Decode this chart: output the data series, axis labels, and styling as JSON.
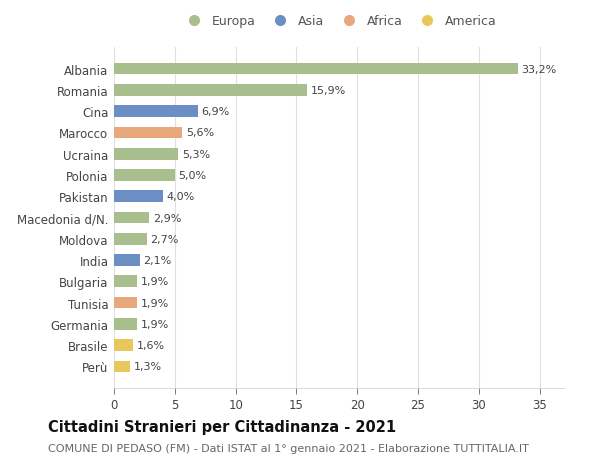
{
  "categories": [
    "Albania",
    "Romania",
    "Cina",
    "Marocco",
    "Ucraina",
    "Polonia",
    "Pakistan",
    "Macedonia d/N.",
    "Moldova",
    "India",
    "Bulgaria",
    "Tunisia",
    "Germania",
    "Brasile",
    "Perù"
  ],
  "values": [
    33.2,
    15.9,
    6.9,
    5.6,
    5.3,
    5.0,
    4.0,
    2.9,
    2.7,
    2.1,
    1.9,
    1.9,
    1.9,
    1.6,
    1.3
  ],
  "labels": [
    "33,2%",
    "15,9%",
    "6,9%",
    "5,6%",
    "5,3%",
    "5,0%",
    "4,0%",
    "2,9%",
    "2,7%",
    "2,1%",
    "1,9%",
    "1,9%",
    "1,9%",
    "1,6%",
    "1,3%"
  ],
  "bar_colors": [
    "#a8be8c",
    "#a8be8c",
    "#6b8ec4",
    "#e8a87c",
    "#a8be8c",
    "#a8be8c",
    "#6b8ec4",
    "#a8be8c",
    "#a8be8c",
    "#6b8ec4",
    "#a8be8c",
    "#e8a87c",
    "#a8be8c",
    "#e8c85a",
    "#e8c85a"
  ],
  "legend_labels": [
    "Europa",
    "Asia",
    "Africa",
    "America"
  ],
  "legend_colors": [
    "#a8be8c",
    "#6b8ec4",
    "#e8a87c",
    "#e8c85a"
  ],
  "title": "Cittadini Stranieri per Cittadinanza - 2021",
  "subtitle": "COMUNE DI PEDASO (FM) - Dati ISTAT al 1° gennaio 2021 - Elaborazione TUTTITALIA.IT",
  "xlim": [
    0,
    37
  ],
  "xticks": [
    0,
    5,
    10,
    15,
    20,
    25,
    30,
    35
  ],
  "background_color": "#ffffff",
  "grid_color": "#e0e0e0",
  "bar_height": 0.55,
  "title_fontsize": 10.5,
  "subtitle_fontsize": 8,
  "label_fontsize": 8,
  "tick_fontsize": 8.5,
  "legend_fontsize": 9
}
